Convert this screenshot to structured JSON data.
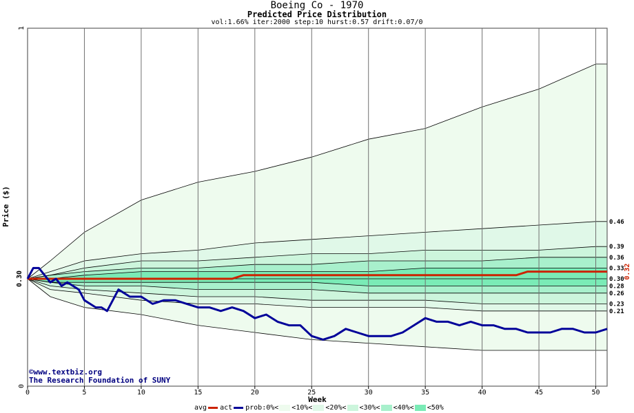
{
  "header": {
    "title": "Boeing Co - 1970",
    "subtitle": "Predicted Price Distribution",
    "params": "vol:1.66% iter:2000 step:10 hurst:0.57 drift:0.07/0"
  },
  "watermark": {
    "site": "www.textbiz.org",
    "org": "The Research Foundation of SUNY"
  },
  "colors": {
    "avg": "#cc2200",
    "act": "#000099",
    "band0": "#eefbee",
    "band10": "#e0f8e8",
    "band20": "#ccf5dc",
    "band30": "#a8f0cc",
    "band40": "#7aebb6",
    "band50": "#4fe39e"
  },
  "legend": {
    "avg": "avg",
    "act": "act",
    "prob0": "prob:0%<",
    "p10": "<10%<",
    "p20": "<20%<",
    "p30": "<30%<",
    "p40": "<40%<",
    "p50": "<50%"
  },
  "chart_data": {
    "type": "area",
    "title": "Boeing Co - 1970",
    "subtitle": "Predicted Price Distribution",
    "xlabel": "Week",
    "ylabel": "Price ($)",
    "xlim": [
      0,
      51
    ],
    "ylim": [
      0,
      1
    ],
    "x_ticks": [
      "0",
      "5",
      "10",
      "15",
      "20",
      "25",
      "30",
      "35",
      "40",
      "45",
      "50"
    ],
    "y_tick_top": "1",
    "y_tick_bottom": "0",
    "y_start_label": "0.30",
    "end_price_label": "0.32",
    "grid": true,
    "band_labels": [
      "0.46",
      "0.39",
      "0.36",
      "0.33",
      "0.30",
      "0.28",
      "0.26",
      "0.23",
      "0.21"
    ],
    "bands_end": [
      0.9,
      0.46,
      0.39,
      0.36,
      0.33,
      0.3,
      0.28,
      0.26,
      0.23,
      0.21,
      0.1
    ],
    "band_weeks": [
      0,
      2,
      5,
      10,
      15,
      20,
      25,
      30,
      35,
      40,
      45,
      50,
      51
    ],
    "bands": [
      [
        0.3,
        0.35,
        0.43,
        0.52,
        0.57,
        0.6,
        0.64,
        0.69,
        0.72,
        0.78,
        0.83,
        0.9,
        0.9
      ],
      [
        0.3,
        0.32,
        0.35,
        0.37,
        0.38,
        0.4,
        0.41,
        0.42,
        0.43,
        0.44,
        0.45,
        0.46,
        0.46
      ],
      [
        0.3,
        0.31,
        0.33,
        0.35,
        0.35,
        0.36,
        0.37,
        0.37,
        0.38,
        0.38,
        0.38,
        0.39,
        0.39
      ],
      [
        0.3,
        0.31,
        0.32,
        0.33,
        0.33,
        0.34,
        0.34,
        0.35,
        0.35,
        0.35,
        0.36,
        0.36,
        0.36
      ],
      [
        0.3,
        0.3,
        0.31,
        0.32,
        0.32,
        0.32,
        0.32,
        0.32,
        0.33,
        0.33,
        0.33,
        0.33,
        0.33
      ],
      [
        0.3,
        0.3,
        0.3,
        0.3,
        0.3,
        0.3,
        0.3,
        0.3,
        0.3,
        0.3,
        0.3,
        0.3,
        0.3
      ],
      [
        0.3,
        0.29,
        0.29,
        0.29,
        0.29,
        0.29,
        0.29,
        0.28,
        0.28,
        0.28,
        0.28,
        0.28,
        0.28
      ],
      [
        0.3,
        0.29,
        0.28,
        0.28,
        0.27,
        0.27,
        0.27,
        0.26,
        0.26,
        0.26,
        0.26,
        0.26,
        0.26
      ],
      [
        0.3,
        0.28,
        0.27,
        0.26,
        0.25,
        0.25,
        0.24,
        0.24,
        0.24,
        0.23,
        0.23,
        0.23,
        0.23
      ],
      [
        0.3,
        0.27,
        0.26,
        0.24,
        0.23,
        0.23,
        0.22,
        0.22,
        0.22,
        0.21,
        0.21,
        0.21,
        0.21
      ],
      [
        0.3,
        0.25,
        0.22,
        0.2,
        0.17,
        0.15,
        0.13,
        0.12,
        0.11,
        0.1,
        0.1,
        0.1,
        0.1
      ]
    ],
    "series": [
      {
        "name": "avg",
        "x": [
          0,
          18,
          19,
          43,
          44,
          51
        ],
        "y": [
          0.3,
          0.3,
          0.31,
          0.31,
          0.32,
          0.32
        ]
      },
      {
        "name": "act",
        "x": [
          0,
          0.5,
          1,
          1.5,
          2,
          2.5,
          3,
          3.5,
          4,
          4.5,
          5,
          5.5,
          6,
          6.5,
          7,
          7.5,
          8,
          8.5,
          9,
          9.5,
          10,
          11,
          12,
          13,
          14,
          15,
          16,
          17,
          18,
          19,
          20,
          21,
          22,
          23,
          24,
          25,
          26,
          27,
          28,
          29,
          30,
          31,
          32,
          33,
          34,
          35,
          36,
          37,
          38,
          39,
          40,
          41,
          42,
          43,
          44,
          45,
          46,
          47,
          48,
          49,
          50,
          51
        ],
        "y": [
          0.3,
          0.33,
          0.33,
          0.31,
          0.29,
          0.3,
          0.28,
          0.29,
          0.28,
          0.27,
          0.24,
          0.23,
          0.22,
          0.22,
          0.21,
          0.24,
          0.27,
          0.26,
          0.25,
          0.25,
          0.25,
          0.23,
          0.24,
          0.24,
          0.23,
          0.22,
          0.22,
          0.21,
          0.22,
          0.21,
          0.19,
          0.2,
          0.18,
          0.17,
          0.17,
          0.14,
          0.13,
          0.14,
          0.16,
          0.15,
          0.14,
          0.14,
          0.14,
          0.15,
          0.17,
          0.19,
          0.18,
          0.18,
          0.17,
          0.18,
          0.17,
          0.17,
          0.16,
          0.16,
          0.15,
          0.15,
          0.15,
          0.16,
          0.16,
          0.15,
          0.15,
          0.16
        ]
      }
    ]
  }
}
